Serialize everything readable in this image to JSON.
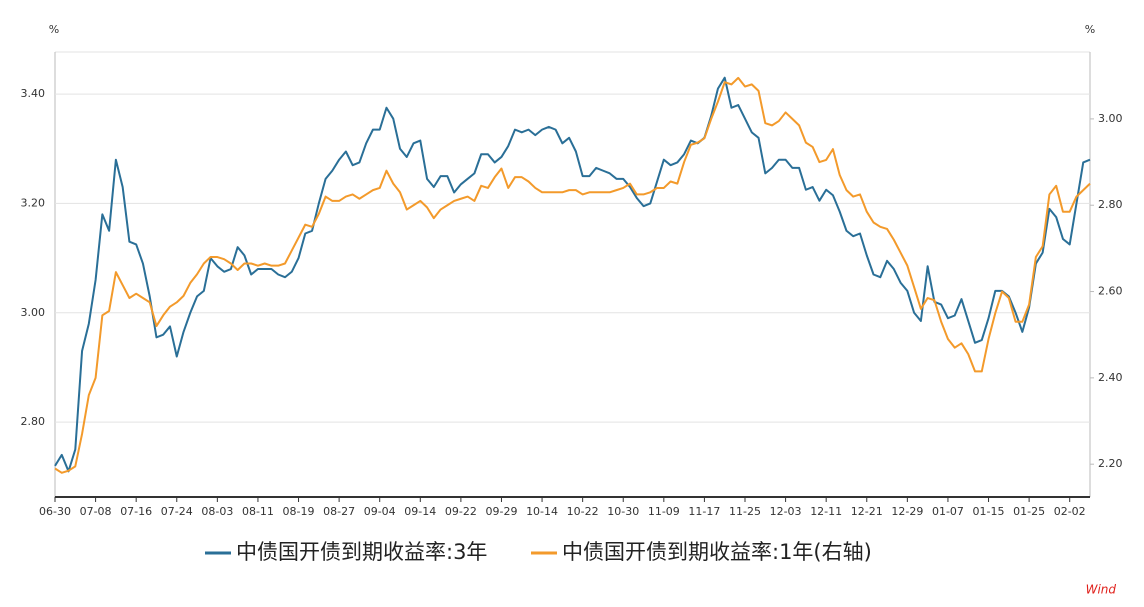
{
  "chart_data": {
    "type": "line",
    "y_label": "%",
    "y2_label": "%",
    "watermark": "Wind",
    "categories": [
      "06-30",
      null,
      null,
      null,
      null,
      null,
      "07-08",
      null,
      null,
      null,
      null,
      null,
      "07-16",
      null,
      null,
      null,
      null,
      null,
      "07-24",
      null,
      null,
      null,
      null,
      null,
      "08-03",
      null,
      null,
      null,
      null,
      null,
      "08-11",
      null,
      null,
      null,
      null,
      null,
      "08-19",
      null,
      null,
      null,
      null,
      null,
      "08-27",
      null,
      null,
      null,
      null,
      null,
      "09-04",
      null,
      null,
      null,
      null,
      null,
      "09-14",
      null,
      null,
      null,
      null,
      null,
      "09-22",
      null,
      null,
      null,
      null,
      null,
      "09-29",
      null,
      null,
      null,
      null,
      null,
      "10-14",
      null,
      null,
      null,
      null,
      null,
      "10-22",
      null,
      null,
      null,
      null,
      null,
      "10-30",
      null,
      null,
      null,
      null,
      null,
      "11-09",
      null,
      null,
      null,
      null,
      null,
      "11-17",
      null,
      null,
      null,
      null,
      null,
      "11-25",
      null,
      null,
      null,
      null,
      null,
      "12-03",
      null,
      null,
      null,
      null,
      null,
      "12-11",
      null,
      null,
      null,
      null,
      null,
      "12-21",
      null,
      null,
      null,
      null,
      null,
      "12-29",
      null,
      null,
      null,
      null,
      null,
      "01-07",
      null,
      null,
      null,
      null,
      null,
      "01-15",
      null,
      null,
      null,
      null,
      null,
      "01-25",
      null,
      null,
      null,
      null,
      null,
      "02-02",
      null,
      null,
      null
    ],
    "series": [
      {
        "name": "中债国开债到期收益率:3年",
        "color": "#2a6f97",
        "axis": "y",
        "values": [
          2.72,
          2.74,
          2.71,
          2.75,
          2.93,
          2.98,
          3.06,
          3.18,
          3.15,
          3.28,
          3.23,
          3.13,
          3.125,
          3.09,
          3.03,
          2.955,
          2.96,
          2.975,
          2.92,
          2.965,
          3.0,
          3.03,
          3.04,
          3.1,
          3.085,
          3.075,
          3.08,
          3.12,
          3.105,
          3.07,
          3.08,
          3.08,
          3.08,
          3.07,
          3.065,
          3.075,
          3.1,
          3.145,
          3.15,
          3.2,
          3.245,
          3.26,
          3.28,
          3.295,
          3.27,
          3.275,
          3.31,
          3.335,
          3.335,
          3.375,
          3.355,
          3.3,
          3.285,
          3.31,
          3.315,
          3.245,
          3.23,
          3.25,
          3.25,
          3.22,
          3.235,
          3.245,
          3.255,
          3.29,
          3.29,
          3.275,
          3.285,
          3.305,
          3.335,
          3.33,
          3.335,
          3.325,
          3.335,
          3.34,
          3.335,
          3.31,
          3.32,
          3.295,
          3.25,
          3.25,
          3.265,
          3.26,
          3.255,
          3.245,
          3.245,
          3.23,
          3.21,
          3.195,
          3.2,
          3.24,
          3.28,
          3.27,
          3.275,
          3.29,
          3.315,
          3.31,
          3.32,
          3.36,
          3.41,
          3.43,
          3.375,
          3.38,
          3.355,
          3.33,
          3.32,
          3.255,
          3.265,
          3.28,
          3.28,
          3.265,
          3.265,
          3.225,
          3.23,
          3.205,
          3.225,
          3.215,
          3.185,
          3.15,
          3.14,
          3.145,
          3.105,
          3.07,
          3.065,
          3.095,
          3.08,
          3.055,
          3.04,
          3.0,
          2.985,
          3.085,
          3.02,
          3.015,
          2.99,
          2.995,
          3.025,
          2.985,
          2.945,
          2.95,
          2.99,
          3.04,
          3.04,
          3.03,
          3.0,
          2.965,
          3.01,
          3.09,
          3.11,
          3.19,
          3.175,
          3.135,
          3.125,
          3.2,
          3.275,
          3.28
        ]
      },
      {
        "name": "中债国开债到期收益率:1年(右轴)",
        "color": "#f39a2b",
        "axis": "y2",
        "values": [
          2.19,
          2.18,
          2.185,
          2.195,
          2.27,
          2.36,
          2.4,
          2.545,
          2.555,
          2.645,
          2.615,
          2.585,
          2.595,
          2.585,
          2.575,
          2.52,
          2.545,
          2.565,
          2.575,
          2.59,
          2.62,
          2.64,
          2.665,
          2.68,
          2.68,
          2.675,
          2.665,
          2.65,
          2.665,
          2.665,
          2.66,
          2.665,
          2.66,
          2.66,
          2.665,
          2.695,
          2.725,
          2.755,
          2.75,
          2.78,
          2.82,
          2.81,
          2.81,
          2.82,
          2.825,
          2.815,
          2.825,
          2.835,
          2.84,
          2.88,
          2.85,
          2.83,
          2.79,
          2.8,
          2.81,
          2.795,
          2.77,
          2.79,
          2.8,
          2.81,
          2.815,
          2.82,
          2.81,
          2.845,
          2.84,
          2.865,
          2.885,
          2.84,
          2.865,
          2.865,
          2.855,
          2.84,
          2.83,
          2.83,
          2.83,
          2.83,
          2.835,
          2.835,
          2.825,
          2.83,
          2.83,
          2.83,
          2.83,
          2.835,
          2.84,
          2.85,
          2.825,
          2.825,
          2.83,
          2.84,
          2.84,
          2.855,
          2.85,
          2.9,
          2.94,
          2.945,
          2.955,
          3.0,
          3.04,
          3.085,
          3.08,
          3.095,
          3.075,
          3.08,
          3.065,
          2.99,
          2.985,
          2.995,
          3.015,
          3.0,
          2.985,
          2.945,
          2.935,
          2.9,
          2.905,
          2.93,
          2.87,
          2.835,
          2.82,
          2.825,
          2.785,
          2.76,
          2.75,
          2.745,
          2.72,
          2.69,
          2.66,
          2.61,
          2.56,
          2.585,
          2.58,
          2.53,
          2.49,
          2.47,
          2.48,
          2.455,
          2.415,
          2.415,
          2.49,
          2.55,
          2.6,
          2.585,
          2.53,
          2.53,
          2.57,
          2.68,
          2.705,
          2.825,
          2.845,
          2.785,
          2.785,
          2.82,
          2.835,
          2.85
        ]
      }
    ],
    "ylim": [
      2.663,
      3.477
    ],
    "yticks": [
      {
        "value": 2.8,
        "label": "2.80"
      },
      {
        "value": 3.0,
        "label": "3.00"
      },
      {
        "value": 3.2,
        "label": "3.20"
      },
      {
        "value": 3.4,
        "label": "3.40"
      }
    ],
    "y2lim": [
      2.124,
      3.155
    ],
    "y2ticks": [
      {
        "value": 2.2,
        "label": "2.20"
      },
      {
        "value": 2.4,
        "label": "2.40"
      },
      {
        "value": 2.6,
        "label": "2.60"
      },
      {
        "value": 2.8,
        "label": "2.80"
      },
      {
        "value": 3.0,
        "label": "3.00"
      }
    ],
    "grid": true
  }
}
